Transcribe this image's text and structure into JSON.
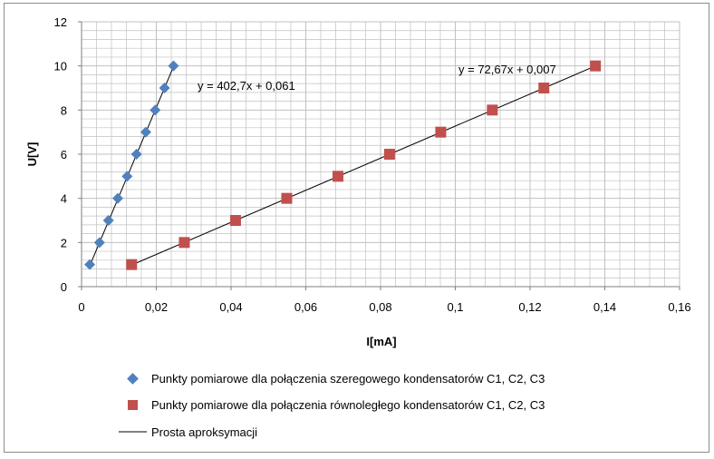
{
  "chart_data": {
    "type": "scatter",
    "xlabel": "I[mA]",
    "ylabel": "U[V]",
    "xlim": [
      0,
      0.16
    ],
    "ylim": [
      0,
      12
    ],
    "x_ticks": [
      "0",
      "0,02",
      "0,04",
      "0,06",
      "0,08",
      "0,1",
      "0,12",
      "0,14",
      "0,16"
    ],
    "y_ticks": [
      "0",
      "2",
      "4",
      "6",
      "8",
      "10",
      "12"
    ],
    "grid": true,
    "legend_position": "bottom",
    "series": [
      {
        "name": "Punkty pomiarowe dla połączenia szeregowego kondensatorów C1, C2, C3",
        "marker": "diamond",
        "color": "#4F81BD",
        "x": [
          0.0022,
          0.0048,
          0.0072,
          0.0097,
          0.0122,
          0.0147,
          0.0172,
          0.0197,
          0.0222,
          0.0246
        ],
        "y": [
          1,
          2,
          3,
          4,
          5,
          6,
          7,
          8,
          9,
          10
        ],
        "trendline": {
          "slope": 402.7,
          "intercept": 0.061,
          "x_range": [
            0.0022,
            0.0246
          ]
        }
      },
      {
        "name": "Punkty pomiarowe dla połączenia równoległego kondensatorów C1, C2, C3",
        "marker": "square",
        "color": "#C0504D",
        "x": [
          0.0134,
          0.0275,
          0.0412,
          0.0549,
          0.0686,
          0.0824,
          0.0961,
          0.1099,
          0.1237,
          0.1375
        ],
        "y": [
          1,
          2,
          3,
          4,
          5,
          6,
          7,
          8,
          9,
          10
        ],
        "trendline": {
          "slope": 72.67,
          "intercept": 0.007,
          "x_range": [
            0.0134,
            0.1375
          ]
        }
      }
    ],
    "trendline_legend": "Prosta aproksymacji",
    "annotations": [
      "y = 402,7x + 0,061",
      "y = 72,67x + 0,007"
    ]
  },
  "colors": {
    "series1": "#4F81BD",
    "series2": "#C0504D",
    "line": "#000000",
    "grid": "#c0c0c0"
  }
}
